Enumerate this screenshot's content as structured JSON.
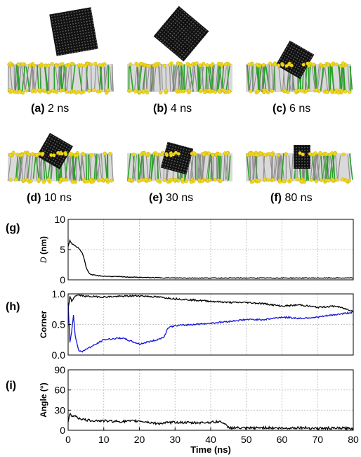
{
  "snapshots": [
    {
      "letter": "(a)",
      "time": "2 ns"
    },
    {
      "letter": "(b)",
      "time": "4 ns"
    },
    {
      "letter": "(c)",
      "time": "6 ns"
    },
    {
      "letter": "(d)",
      "time": "10 ns"
    },
    {
      "letter": "(e)",
      "time": "30 ns"
    },
    {
      "letter": "(f)",
      "time": "80 ns"
    }
  ],
  "colors": {
    "lipid_head": "#f2d81c",
    "lipid_tail_gray": "#8c8c8c",
    "lipid_tail_green": "#2aa02a",
    "sheet": "#111111",
    "series_black": "#000000",
    "series_blue": "#1515d9",
    "grid": "#b5b5b5"
  },
  "chart_data": [
    {
      "panel": "(g)",
      "type": "line",
      "ylabel": "D (nm)",
      "ylabel_italic": "D",
      "ylabel_unit": "(nm)",
      "ylim": [
        0,
        10
      ],
      "yticks": [
        0,
        5,
        10
      ],
      "xlim": [
        0,
        80
      ],
      "grid": true,
      "series": [
        {
          "color": "#000000",
          "x": [
            0,
            0.5,
            1,
            1.5,
            2,
            2.5,
            3,
            3.5,
            4,
            4.5,
            5,
            5.5,
            6,
            7,
            8,
            10,
            15,
            20,
            30,
            40,
            50,
            60,
            70,
            80
          ],
          "y": [
            5.5,
            6.5,
            6.0,
            5.8,
            5.6,
            5.4,
            5.2,
            4.8,
            4.4,
            3.5,
            2.2,
            1.5,
            1.0,
            0.8,
            0.7,
            0.6,
            0.5,
            0.4,
            0.3,
            0.3,
            0.3,
            0.3,
            0.3,
            0.3
          ]
        }
      ]
    },
    {
      "panel": "(h)",
      "type": "line",
      "ylabel": "Corner",
      "ylim": [
        0,
        1
      ],
      "yticks": [
        0.0,
        0.5,
        1.0
      ],
      "xlim": [
        0,
        80
      ],
      "grid": true,
      "series": [
        {
          "color": "#000000",
          "x": [
            0,
            0.5,
            1,
            2,
            3,
            5,
            10,
            15,
            20,
            25,
            30,
            35,
            40,
            45,
            50,
            55,
            60,
            65,
            70,
            75,
            80
          ],
          "y": [
            0.75,
            0.95,
            0.88,
            0.97,
            0.98,
            0.96,
            0.95,
            0.96,
            0.97,
            0.95,
            0.92,
            0.9,
            0.88,
            0.86,
            0.86,
            0.84,
            0.8,
            0.82,
            0.78,
            0.8,
            0.72
          ]
        },
        {
          "color": "#1515d9",
          "x": [
            0,
            0.5,
            1,
            1.5,
            2,
            3,
            4,
            5,
            7,
            10,
            15,
            20,
            25,
            27,
            28,
            30,
            35,
            40,
            45,
            50,
            55,
            60,
            65,
            70,
            75,
            80
          ],
          "y": [
            0.85,
            0.2,
            0.4,
            0.65,
            0.3,
            0.08,
            0.05,
            0.1,
            0.15,
            0.25,
            0.28,
            0.18,
            0.25,
            0.3,
            0.45,
            0.48,
            0.5,
            0.52,
            0.55,
            0.58,
            0.58,
            0.62,
            0.6,
            0.62,
            0.66,
            0.7
          ]
        }
      ]
    },
    {
      "panel": "(i)",
      "type": "line",
      "ylabel": "Angle (°)",
      "ylim": [
        0,
        90
      ],
      "yticks": [
        0,
        30,
        60,
        90
      ],
      "xlim": [
        0,
        80
      ],
      "xticks": [
        0,
        10,
        20,
        30,
        40,
        50,
        60,
        70,
        80
      ],
      "xlabel": "Time (ns)",
      "grid": true,
      "series": [
        {
          "color": "#000000",
          "x": [
            0,
            0.5,
            1,
            2,
            3,
            5,
            10,
            15,
            20,
            25,
            30,
            35,
            40,
            43,
            45,
            50,
            55,
            60,
            65,
            70,
            75,
            80
          ],
          "y": [
            12,
            25,
            20,
            22,
            18,
            15,
            14,
            13,
            14,
            10,
            12,
            11,
            12,
            13,
            4,
            3,
            4,
            3,
            4,
            3,
            3,
            3
          ]
        }
      ]
    }
  ]
}
